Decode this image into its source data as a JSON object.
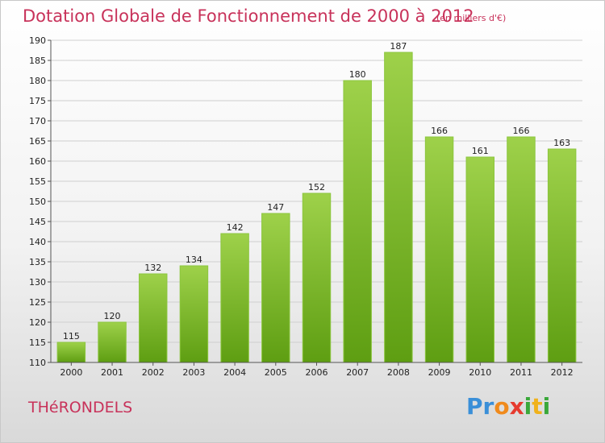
{
  "header": {
    "title": "Dotation Globale de Fonctionnement de 2000 à 2012",
    "subtitle": "(en milliers d'€)"
  },
  "footer": {
    "commune": "THéRONDELS",
    "logo": {
      "text": "Proxiti",
      "letters": [
        {
          "ch": "P",
          "color": "#3a8fd8"
        },
        {
          "ch": "r",
          "color": "#3a8fd8"
        },
        {
          "ch": "o",
          "color": "#f08a1c"
        },
        {
          "ch": "x",
          "color": "#e63a2e"
        },
        {
          "ch": "i",
          "color": "#3aa83a"
        },
        {
          "ch": "t",
          "color": "#f0b21c"
        },
        {
          "ch": "i",
          "color": "#3aa83a"
        }
      ]
    }
  },
  "colors": {
    "accent": "#c8325a",
    "bar_top": "#9ed14a",
    "bar_bottom": "#5e9e12",
    "grid": "#cfcfcf"
  },
  "chart_data": {
    "type": "bar",
    "categories": [
      "2000",
      "2001",
      "2002",
      "2003",
      "2004",
      "2005",
      "2006",
      "2007",
      "2008",
      "2009",
      "2010",
      "2011",
      "2012"
    ],
    "values": [
      115,
      120,
      132,
      134,
      142,
      147,
      152,
      180,
      187,
      166,
      161,
      166,
      163
    ],
    "ylim": [
      110,
      190
    ],
    "yticks": [
      110,
      115,
      120,
      125,
      130,
      135,
      140,
      145,
      150,
      155,
      160,
      165,
      170,
      175,
      180,
      185,
      190
    ],
    "grid": true,
    "xlabel": "",
    "ylabel": ""
  }
}
